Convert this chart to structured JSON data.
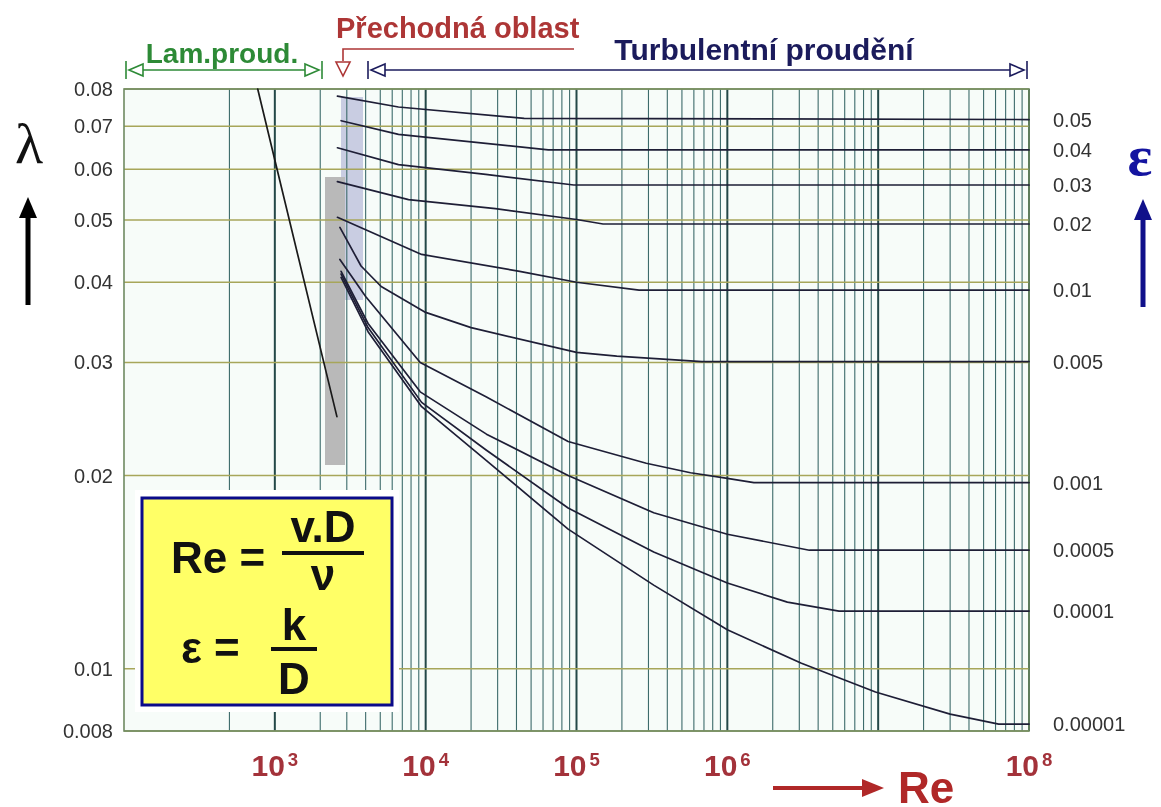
{
  "chart_data": {
    "type": "line",
    "xlabel": "Re",
    "ylabel": "λ",
    "annotations": [
      "Lam.proud.",
      "Přechodná oblast",
      "Turbulentní proudění",
      "Re =",
      "v.D",
      "ν",
      "ε =",
      "k",
      "D",
      "ε"
    ],
    "log": "xy",
    "xlim": [
      100,
      100000000
    ],
    "ylim": [
      0.008,
      0.08
    ],
    "xticks": [
      {
        "value": 500,
        "label": null
      },
      {
        "value": 1000,
        "label": "10$^{3}$"
      },
      {
        "value": 2000,
        "label": null
      },
      {
        "value": 3000,
        "label": null
      },
      {
        "value": 4000,
        "label": null
      },
      {
        "value": 5000,
        "label": null
      },
      {
        "value": 6000,
        "label": null
      },
      {
        "value": 7000,
        "label": null
      },
      {
        "value": 8000,
        "label": null
      },
      {
        "value": 9000,
        "label": null
      },
      {
        "value": 10000,
        "label": "10$^{4}$"
      },
      {
        "value": 20000,
        "label": null
      },
      {
        "value": 30000,
        "label": null
      },
      {
        "value": 40000,
        "label": null
      },
      {
        "value": 50000,
        "label": null
      },
      {
        "value": 60000,
        "label": null
      },
      {
        "value": 70000,
        "label": null
      },
      {
        "value": 80000,
        "label": null
      },
      {
        "value": 90000,
        "label": null
      },
      {
        "value": 100000,
        "label": "10$^{5}$"
      },
      {
        "value": 200000,
        "label": null
      },
      {
        "value": 300000,
        "label": null
      },
      {
        "value": 400000,
        "label": null
      },
      {
        "value": 500000,
        "label": null
      },
      {
        "value": 600000,
        "label": null
      },
      {
        "value": 700000,
        "label": null
      },
      {
        "value": 800000,
        "label": null
      },
      {
        "value": 900000,
        "label": null
      },
      {
        "value": 1000000,
        "label": "10$^{6}$"
      },
      {
        "value": 2000000,
        "label": null
      },
      {
        "value": 3000000,
        "label": null
      },
      {
        "value": 4000000,
        "label": null
      },
      {
        "value": 5000000,
        "label": null
      },
      {
        "value": 6000000,
        "label": null
      },
      {
        "value": 7000000,
        "label": null
      },
      {
        "value": 8000000,
        "label": null
      },
      {
        "value": 9000000,
        "label": null
      },
      {
        "value": 10000000,
        "label": null
      },
      {
        "value": 20000000,
        "label": null
      },
      {
        "value": 30000000,
        "label": null
      },
      {
        "value": 40000000,
        "label": null
      },
      {
        "value": 50000000,
        "label": null
      },
      {
        "value": 60000000,
        "label": null
      },
      {
        "value": 70000000,
        "label": null
      },
      {
        "value": 80000000,
        "label": null
      },
      {
        "value": 90000000,
        "label": null
      },
      {
        "value": 100000000,
        "label": "10$^{8}$"
      }
    ],
    "yticks": [
      0.008,
      0.01,
      0.02,
      0.03,
      0.04,
      0.05,
      0.06,
      0.07,
      0.08
    ],
    "grid": true,
    "series": [
      {
        "color": "#1a1a1a",
        "x": [
          770,
          1000,
          2580
        ],
        "values": [
          0.08,
          0.062,
          0.0247
        ]
      },
      {
        "name": "0.05",
        "color": "#1e1e36",
        "x": [
          2600,
          6600,
          45000,
          100000000
        ],
        "values": [
          0.078,
          0.075,
          0.072,
          0.0717
        ]
      },
      {
        "name": "0.04",
        "color": "#1e1e36",
        "x": [
          2750,
          6600,
          65000,
          100000000
        ],
        "values": [
          0.0714,
          0.068,
          0.0643,
          0.0643
        ]
      },
      {
        "name": "0.03",
        "color": "#1e1e36",
        "x": [
          2600,
          6600,
          25000,
          96000,
          100000000
        ],
        "values": [
          0.0648,
          0.061,
          0.0589,
          0.0567,
          0.0567
        ]
      },
      {
        "name": "0.02",
        "color": "#1e1e36",
        "x": [
          2600,
          7700,
          29000,
          100000,
          150000,
          100000000
        ],
        "values": [
          0.0574,
          0.0538,
          0.0521,
          0.0501,
          0.0493,
          0.0493
        ]
      },
      {
        "name": "0.01",
        "color": "#1e1e36",
        "x": [
          2600,
          9400,
          42000,
          100000,
          260000,
          100000000
        ],
        "values": [
          0.0505,
          0.0442,
          0.0416,
          0.04,
          0.0389,
          0.0389
        ]
      },
      {
        "name": "0.005",
        "color": "#1e1e36",
        "x": [
          2700,
          3730,
          5070,
          10000,
          20000,
          100000,
          185000,
          680000,
          100000000
        ],
        "values": [
          0.0487,
          0.0424,
          0.0394,
          0.0359,
          0.034,
          0.0311,
          0.0307,
          0.0301,
          0.0301
        ]
      },
      {
        "name": "0.001",
        "color": "#1e1e36",
        "x": [
          2700,
          4000,
          9200,
          25300,
          88000,
          290000,
          570000,
          1000000,
          1500000,
          100000000
        ],
        "values": [
          0.0434,
          0.038,
          0.03,
          0.0265,
          0.0226,
          0.0209,
          0.0202,
          0.0198,
          0.0195,
          0.0195
        ]
      },
      {
        "name": "0.0005",
        "color": "#1e1e36",
        "x": [
          2750,
          4150,
          9200,
          25300,
          88000,
          325000,
          1000000,
          3500000,
          100000000
        ],
        "values": [
          0.0416,
          0.0345,
          0.027,
          0.0232,
          0.02,
          0.0175,
          0.0162,
          0.0153,
          0.0153
        ]
      },
      {
        "name": "0.0001",
        "color": "#1e1e36",
        "x": [
          2750,
          4150,
          9400,
          25300,
          88000,
          325000,
          1000000,
          2500000,
          5500000,
          100000000
        ],
        "values": [
          0.0412,
          0.034,
          0.026,
          0.0219,
          0.0178,
          0.0152,
          0.0136,
          0.0127,
          0.0123,
          0.0123
        ]
      },
      {
        "name": "0.00001",
        "color": "#1e1e36",
        "x": [
          2750,
          4150,
          9400,
          25300,
          88000,
          325000,
          1000000,
          3100000,
          9600000,
          30000000,
          63000000,
          100000000
        ],
        "values": [
          0.0407,
          0.0335,
          0.0256,
          0.0211,
          0.0165,
          0.0135,
          0.0115,
          0.0102,
          0.0092,
          0.0085,
          0.0082,
          0.0082
        ]
      }
    ]
  }
}
